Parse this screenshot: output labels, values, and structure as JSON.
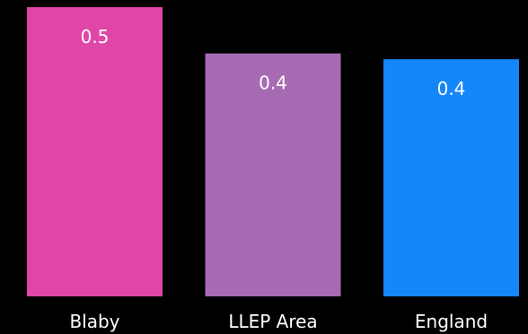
{
  "chart_data": {
    "type": "bar",
    "categories": [
      "Blaby",
      "LLEP Area",
      "England"
    ],
    "values": [
      0.5,
      0.42,
      0.41
    ],
    "data_labels": [
      "0.5",
      "0.4",
      "0.4"
    ],
    "colors": [
      "#e046a8",
      "#a76bb3",
      "#1487fa"
    ],
    "title": "",
    "xlabel": "",
    "ylabel": "",
    "ylim": [
      0,
      0.5
    ],
    "grid": false,
    "legend": "none"
  },
  "colors": {
    "background": "#000000",
    "text": "#ffffff"
  }
}
